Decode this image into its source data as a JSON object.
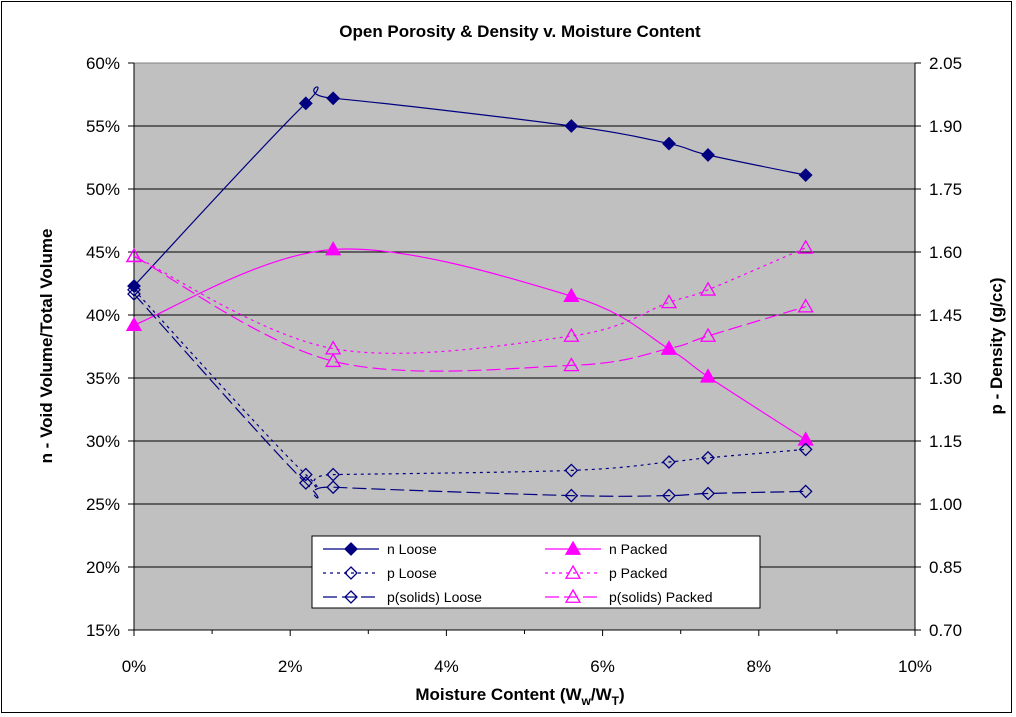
{
  "chart_data": {
    "type": "line",
    "title": "Open Porosity & Density v. Moisture Content",
    "xlabel_main": "Moisture Content (W",
    "xlabel_sub1": "w",
    "xlabel_mid": "/W",
    "xlabel_sub2": "T",
    "xlabel_end": ")",
    "ylabel_left": "n - Void Volume/Total Volume",
    "ylabel_right": "p - Density (g/cc)",
    "xlim": [
      0,
      10
    ],
    "ylim_left": [
      15,
      60
    ],
    "ylim_right": [
      0.7,
      2.05
    ],
    "x_ticks": [
      "0%",
      "2%",
      "4%",
      "6%",
      "8%",
      "10%"
    ],
    "y_left_ticks": [
      "15%",
      "20%",
      "25%",
      "30%",
      "35%",
      "40%",
      "45%",
      "50%",
      "55%",
      "60%"
    ],
    "y_right_ticks": [
      "0.70",
      "0.85",
      "1.00",
      "1.15",
      "1.30",
      "1.45",
      "1.60",
      "1.75",
      "1.90",
      "2.05"
    ],
    "grid": true,
    "legend_position": "bottom-center",
    "colors": {
      "plot_bg": "#c0c0c0",
      "navy": "#000080",
      "magenta": "#ff00ff"
    },
    "series": [
      {
        "name": "n Loose",
        "axis": "left",
        "color": "#000080",
        "marker": "diamond",
        "filled": true,
        "dash": "",
        "x": [
          0.0,
          2.2,
          2.55,
          5.6,
          6.85,
          7.35,
          8.6
        ],
        "y": [
          42.3,
          56.8,
          57.2,
          55.0,
          53.6,
          52.7,
          51.1
        ]
      },
      {
        "name": "n Packed",
        "axis": "left",
        "color": "#ff00ff",
        "marker": "triangle",
        "filled": true,
        "dash": "",
        "x": [
          0.0,
          2.55,
          5.6,
          6.85,
          7.35,
          8.6
        ],
        "y": [
          39.2,
          45.2,
          41.5,
          37.3,
          35.1,
          30.1
        ]
      },
      {
        "name": "p Loose",
        "axis": "right",
        "color": "#000080",
        "marker": "diamond",
        "filled": false,
        "dash": "3,4",
        "x": [
          0.0,
          2.2,
          2.55,
          5.6,
          6.85,
          7.35,
          8.6
        ],
        "y": [
          1.51,
          1.07,
          1.07,
          1.08,
          1.1,
          1.11,
          1.13
        ]
      },
      {
        "name": "p Packed",
        "axis": "right",
        "color": "#ff00ff",
        "marker": "triangle",
        "filled": false,
        "dash": "3,4",
        "x": [
          0.0,
          2.55,
          5.6,
          6.85,
          7.35,
          8.6
        ],
        "y": [
          1.59,
          1.37,
          1.4,
          1.48,
          1.51,
          1.61
        ]
      },
      {
        "name": "p(solids) Loose",
        "axis": "right",
        "color": "#000080",
        "marker": "diamond",
        "filled": false,
        "dash": "14,5",
        "x": [
          0.0,
          2.2,
          2.55,
          5.6,
          6.85,
          7.35,
          8.6
        ],
        "y": [
          1.5,
          1.05,
          1.04,
          1.02,
          1.02,
          1.025,
          1.03
        ]
      },
      {
        "name": "p(solids) Packed",
        "axis": "right",
        "color": "#ff00ff",
        "marker": "triangle",
        "filled": false,
        "dash": "14,5",
        "x": [
          0.0,
          2.55,
          5.6,
          6.85,
          7.35,
          8.6
        ],
        "y": [
          1.59,
          1.34,
          1.33,
          1.37,
          1.4,
          1.47
        ]
      }
    ]
  }
}
